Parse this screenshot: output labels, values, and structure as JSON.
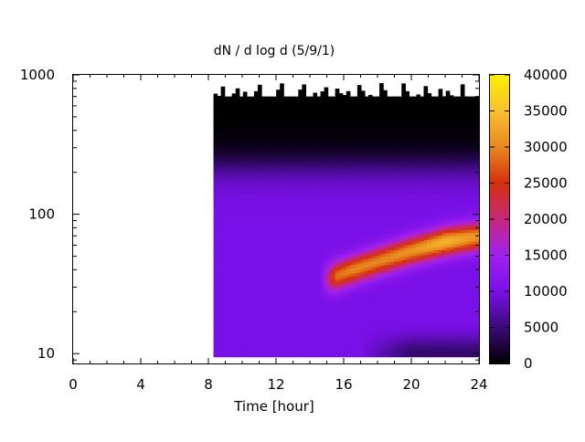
{
  "chart_data": {
    "type": "heatmap",
    "title": "dN / d log d (5/9/1)",
    "xlabel": "Time [hour]",
    "ylabel": "",
    "xlim": [
      0,
      24
    ],
    "ylim": [
      8.5,
      1000
    ],
    "y_scale": "log",
    "x_ticks": [
      0,
      4,
      8,
      12,
      16,
      20,
      24
    ],
    "x_tick_labels": [
      "0",
      "4",
      "8",
      "12",
      "16",
      "20",
      "24"
    ],
    "y_ticks": [
      10,
      100,
      1000
    ],
    "y_tick_labels": [
      "10",
      "100",
      "1000"
    ],
    "colorbar": {
      "range": [
        0,
        40000
      ],
      "ticks": [
        0,
        5000,
        10000,
        15000,
        20000,
        25000,
        30000,
        35000,
        40000
      ],
      "tick_labels": [
        "0",
        "5000",
        "10000",
        "15000",
        "20000",
        "25000",
        "30000",
        "35000",
        "40000"
      ],
      "colors": [
        "#000000",
        "#3a0a78",
        "#7a10e8",
        "#a020f0",
        "#c8287c",
        "#d4300a",
        "#e88820",
        "#f8c030",
        "#fff000"
      ]
    },
    "data_extent": {
      "x_start": 8.3,
      "x_end": 24,
      "d_min": 9.5,
      "d_top_typical": 700,
      "d_top_max": 900
    },
    "mode": {
      "points": [
        {
          "time": 15.2,
          "diameter": 35,
          "value": 28000
        },
        {
          "time": 16.5,
          "diameter": 40,
          "value": 30000
        },
        {
          "time": 18,
          "diameter": 46,
          "value": 30000
        },
        {
          "time": 20,
          "diameter": 55,
          "value": 31000
        },
        {
          "time": 22,
          "diameter": 64,
          "value": 34000
        },
        {
          "time": 24,
          "diameter": 70,
          "value": 31000
        }
      ],
      "background_value": 10000
    }
  }
}
